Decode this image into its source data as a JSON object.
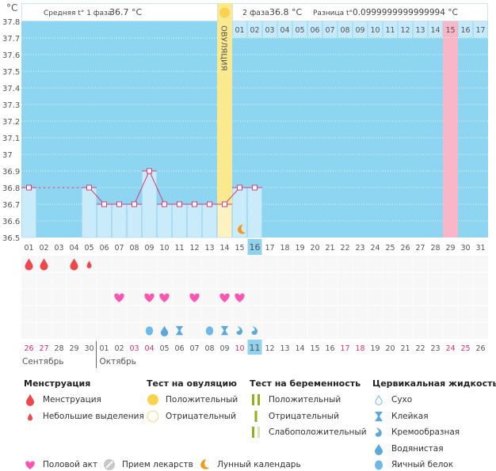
{
  "unit_label": "°C",
  "header": {
    "phase1_label": "Средняя t° 1 фаза",
    "phase1_value": "36.7 °C",
    "phase2_label": "2 фаза",
    "phase2_value": "36.8 °C",
    "diff_label": "Разница t°",
    "diff_value": "0.0999999999999994 °C"
  },
  "ovulation_label": "ОВУЛЯЦИЯ",
  "chart_data": {
    "type": "line",
    "ylim": [
      36.5,
      37.8
    ],
    "yticks": [
      "37.8",
      "37.7",
      "37.6",
      "37.5",
      "37.4",
      "37.3",
      "37.2",
      "37.1",
      "37",
      "36.9",
      "36.8",
      "36.7",
      "36.6",
      "36.5"
    ],
    "x": [
      "01",
      "02",
      "03",
      "04",
      "05",
      "06",
      "07",
      "08",
      "09",
      "10",
      "11",
      "12",
      "13",
      "14",
      "15",
      "16",
      "17",
      "18",
      "19",
      "20",
      "21",
      "22",
      "23",
      "24",
      "25",
      "26",
      "27",
      "28",
      "29",
      "30",
      "31"
    ],
    "temperatures": [
      36.8,
      null,
      null,
      null,
      36.8,
      36.7,
      36.7,
      36.7,
      36.9,
      36.7,
      36.7,
      36.7,
      36.7,
      36.7,
      36.8,
      36.8,
      null,
      null,
      null,
      null,
      null,
      null,
      null,
      null,
      null,
      null,
      null,
      null,
      null,
      null,
      null
    ],
    "ovulation_day": "14",
    "next_cycle_start_day": "15",
    "next_cycle_days": [
      "01",
      "02",
      "03",
      "04",
      "05",
      "06",
      "07",
      "08",
      "09",
      "10",
      "11",
      "12",
      "13",
      "14",
      "15",
      "16",
      "17"
    ],
    "next_cycle_highlight": "15",
    "current_day": "16",
    "moon_day": "15",
    "grid": true,
    "colors": {
      "background": "#8dd5f0",
      "bar": "#c9ebfa",
      "line": "#d63c78",
      "ovulation": "#fbe990",
      "highlight": "#f9b6c8",
      "current": "#8fd3ef"
    }
  },
  "events": {
    "menstruation": [
      {
        "day": "01",
        "type": "heavy"
      },
      {
        "day": "02",
        "type": "heavy"
      },
      {
        "day": "04",
        "type": "heavy"
      },
      {
        "day": "05",
        "type": "light"
      }
    ],
    "intercourse": [
      "07",
      "09",
      "10",
      "12",
      "14",
      "15"
    ],
    "cervical": [
      {
        "day": "09",
        "type": "egg-white"
      },
      {
        "day": "10",
        "type": "watery"
      },
      {
        "day": "11",
        "type": "sticky"
      },
      {
        "day": "13",
        "type": "egg-white"
      },
      {
        "day": "14",
        "type": "sticky"
      },
      {
        "day": "15",
        "type": "creamy"
      },
      {
        "day": "16",
        "type": "creamy"
      }
    ]
  },
  "dates": [
    {
      "d": "26",
      "weekend": true
    },
    {
      "d": "27",
      "weekend": true
    },
    {
      "d": "28"
    },
    {
      "d": "29"
    },
    {
      "d": "30"
    },
    {
      "d": "01"
    },
    {
      "d": "02"
    },
    {
      "d": "03",
      "weekend": true
    },
    {
      "d": "04",
      "weekend": true
    },
    {
      "d": "05"
    },
    {
      "d": "06"
    },
    {
      "d": "07"
    },
    {
      "d": "08"
    },
    {
      "d": "09"
    },
    {
      "d": "10",
      "weekend": true
    },
    {
      "d": "11",
      "current": true
    },
    {
      "d": "12"
    },
    {
      "d": "13"
    },
    {
      "d": "14"
    },
    {
      "d": "15"
    },
    {
      "d": "16"
    },
    {
      "d": "17",
      "weekend": true
    },
    {
      "d": "18",
      "weekend": true
    },
    {
      "d": "19"
    },
    {
      "d": "20"
    },
    {
      "d": "21"
    },
    {
      "d": "22"
    },
    {
      "d": "23"
    },
    {
      "d": "24",
      "weekend": true
    },
    {
      "d": "25",
      "weekend": true
    },
    {
      "d": "26"
    }
  ],
  "months": [
    "Сентябрь",
    "Октябрь"
  ],
  "legend": {
    "menstruation": {
      "title": "Менструация",
      "items": [
        {
          "icon": "drop-red",
          "label": "Менструация"
        },
        {
          "icon": "drop-red-small",
          "label": "Небольшие выделения"
        }
      ]
    },
    "ovulation_test": {
      "title": "Тест на овуляцию",
      "items": [
        {
          "icon": "circle-yellow",
          "label": "Положительный"
        },
        {
          "icon": "circle-empty",
          "label": "Отрицательный"
        }
      ]
    },
    "pregnancy_test": {
      "title": "Тест на беременность",
      "items": [
        {
          "icon": "bars-double",
          "label": "Положительный"
        },
        {
          "icon": "bar-single",
          "label": "Отрицательный"
        },
        {
          "icon": "bars-weak",
          "label": "Слабоположительный"
        }
      ]
    },
    "cervical": {
      "title": "Цервикальная жидкость",
      "items": [
        {
          "icon": "dry",
          "label": "Сухо"
        },
        {
          "icon": "sticky",
          "label": "Клейкая"
        },
        {
          "icon": "creamy",
          "label": "Кремообразная"
        },
        {
          "icon": "watery",
          "label": "Водянистая"
        },
        {
          "icon": "egg-white",
          "label": "Яичный белок"
        }
      ]
    },
    "other": [
      {
        "icon": "heart",
        "label": "Половой акт"
      },
      {
        "icon": "pill",
        "label": "Прием лекарств"
      },
      {
        "icon": "moon",
        "label": "Лунный календарь"
      }
    ]
  }
}
